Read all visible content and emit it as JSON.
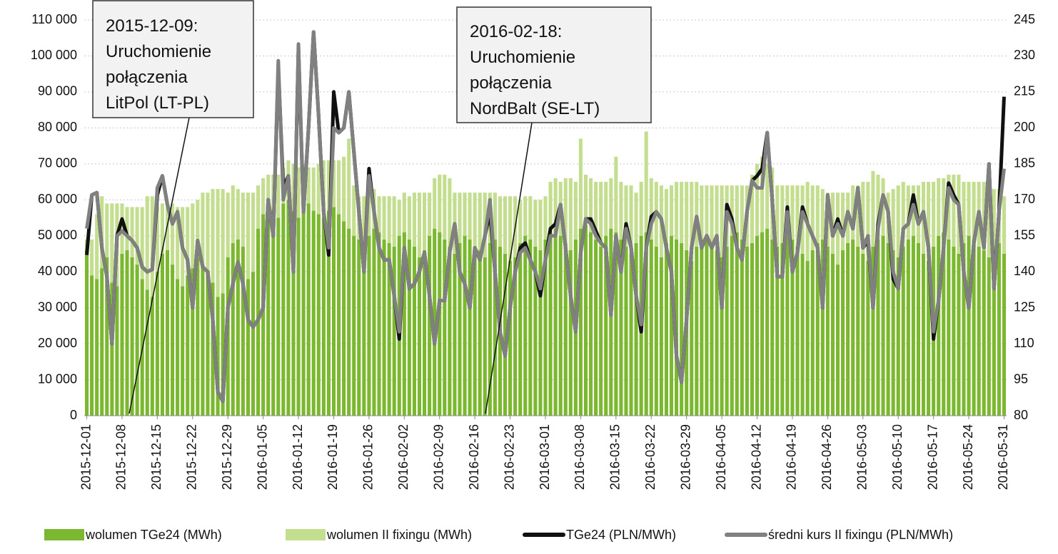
{
  "chart_data": {
    "type": "bar",
    "stacked": true,
    "categories": [
      "2015-12-01",
      null,
      null,
      null,
      null,
      null,
      null,
      "2015-12-08",
      null,
      null,
      null,
      null,
      null,
      null,
      "2015-12-15",
      null,
      null,
      null,
      null,
      null,
      null,
      "2015-12-22",
      null,
      null,
      null,
      null,
      null,
      null,
      "2015-12-29",
      null,
      null,
      null,
      null,
      null,
      null,
      "2016-01-05",
      null,
      null,
      null,
      null,
      null,
      null,
      "2016-01-12",
      null,
      null,
      null,
      null,
      null,
      null,
      "2016-01-19",
      null,
      null,
      null,
      null,
      null,
      null,
      "2016-01-26",
      null,
      null,
      null,
      null,
      null,
      null,
      "2016-02-02",
      null,
      null,
      null,
      null,
      null,
      null,
      "2016-02-09",
      null,
      null,
      null,
      null,
      null,
      null,
      "2016-02-16",
      null,
      null,
      null,
      null,
      null,
      null,
      "2016-02-23",
      null,
      null,
      null,
      null,
      null,
      null,
      "2016-03-01",
      null,
      null,
      null,
      null,
      null,
      null,
      "2016-03-08",
      null,
      null,
      null,
      null,
      null,
      null,
      "2016-03-15",
      null,
      null,
      null,
      null,
      null,
      null,
      "2016-03-22",
      null,
      null,
      null,
      null,
      null,
      null,
      "2016-03-29",
      null,
      null,
      null,
      null,
      null,
      null,
      "2016-04-05",
      null,
      null,
      null,
      null,
      null,
      null,
      "2016-04-12",
      null,
      null,
      null,
      null,
      null,
      null,
      "2016-04-19",
      null,
      null,
      null,
      null,
      null,
      null,
      "2016-04-26",
      null,
      null,
      null,
      null,
      null,
      null,
      "2016-05-03",
      null,
      null,
      null,
      null,
      null,
      null,
      "2016-05-10",
      null,
      null,
      null,
      null,
      null,
      null,
      "2016-05-17",
      null,
      null,
      null,
      null,
      null,
      null,
      "2016-05-24",
      null,
      null,
      null,
      null,
      null,
      null,
      "2016-05-31"
    ],
    "ylim": [
      0,
      110000
    ],
    "yticks": [
      0,
      {
        "value": 10000,
        "label": "10 000"
      },
      {
        "value": 20000,
        "label": "20 000"
      },
      {
        "value": 30000,
        "label": "30 000"
      },
      {
        "value": 40000,
        "label": "40 000"
      },
      {
        "value": 50000,
        "label": "50 000"
      },
      {
        "value": 60000,
        "label": "60 000"
      },
      {
        "value": 70000,
        "label": "70 000"
      },
      {
        "value": 80000,
        "label": "80 000"
      },
      {
        "value": 90000,
        "label": "90 000"
      },
      {
        "value": 100000,
        "label": "100 000"
      },
      {
        "value": 110000,
        "label": "110 000"
      }
    ],
    "y2lim": [
      80,
      245
    ],
    "y2ticks": [
      80,
      95,
      110,
      125,
      140,
      155,
      170,
      185,
      200,
      215,
      230,
      245
    ],
    "grid": true,
    "legend": "bottom",
    "series": [
      {
        "name": "wolumen TGe24 (MWh)",
        "type": "bar",
        "color": "#7cb82f",
        "values": [
          46000,
          39000,
          38000,
          41000,
          44000,
          37000,
          36000,
          45000,
          46000,
          44000,
          42000,
          38000,
          35000,
          33000,
          40000,
          45000,
          46000,
          42000,
          38000,
          36000,
          39000,
          41000,
          44000,
          42000,
          40000,
          37000,
          33000,
          34000,
          44000,
          48000,
          49000,
          47000,
          38000,
          40000,
          52000,
          56000,
          58000,
          57000,
          55000,
          59000,
          60000,
          57000,
          55000,
          58000,
          59000,
          57000,
          56000,
          55000,
          57000,
          58000,
          56000,
          54000,
          52000,
          50000,
          49000,
          48000,
          50000,
          52000,
          51000,
          49000,
          48000,
          47000,
          50000,
          51000,
          49000,
          47000,
          44000,
          46000,
          50000,
          52000,
          51000,
          49000,
          47000,
          45000,
          48000,
          50000,
          49000,
          47000,
          46000,
          44000,
          48000,
          49000,
          47000,
          45000,
          43000,
          44000,
          48000,
          50000,
          49000,
          47000,
          46000,
          49000,
          51000,
          52000,
          50000,
          48000,
          46000,
          49000,
          52000,
          53000,
          51000,
          49000,
          47000,
          50000,
          52000,
          51000,
          49000,
          47000,
          45000,
          48000,
          50000,
          51000,
          49000,
          47000,
          44000,
          48000,
          50000,
          49000,
          48000,
          46000,
          43000,
          47000,
          49000,
          50000,
          48000,
          46000,
          44000,
          47000,
          50000,
          51000,
          49000,
          47000,
          48000,
          50000,
          51000,
          52000,
          49000,
          47000,
          48000,
          50000,
          49000,
          47000,
          45000,
          43000,
          46000,
          48000,
          49000,
          47000,
          45000,
          42000,
          46000,
          48000,
          49000,
          47000,
          45000,
          43000,
          47000,
          49000,
          50000,
          48000,
          46000,
          44000,
          47000,
          49000,
          50000,
          48000,
          45000,
          43000,
          47000,
          50000,
          51000,
          49000,
          47000,
          45000,
          48000,
          50000,
          49000,
          47000,
          46000,
          44000,
          47000,
          48000,
          45000
        ]
      },
      {
        "name": "wolumen II fixingu (MWh)",
        "type": "bar",
        "color": "#c4de90",
        "values": [
          3000,
          10000,
          18000,
          20000,
          15000,
          22000,
          23000,
          14000,
          12000,
          14000,
          16000,
          20000,
          26000,
          28000,
          18000,
          14000,
          12000,
          17000,
          20000,
          22000,
          19000,
          18000,
          16000,
          20000,
          22000,
          26000,
          30000,
          29000,
          18000,
          16000,
          14000,
          15000,
          24000,
          22000,
          12000,
          10000,
          9000,
          10000,
          12000,
          10000,
          11000,
          13000,
          14000,
          12000,
          10000,
          12000,
          14000,
          16000,
          14000,
          13000,
          15000,
          18000,
          25000,
          14000,
          12000,
          13000,
          12000,
          11000,
          10000,
          12000,
          13000,
          14000,
          10000,
          11000,
          12000,
          15000,
          18000,
          16000,
          12000,
          14000,
          16000,
          18000,
          19000,
          17000,
          14000,
          12000,
          13000,
          15000,
          16000,
          18000,
          14000,
          13000,
          14000,
          16000,
          18000,
          17000,
          12000,
          11000,
          12000,
          13000,
          14000,
          12000,
          14000,
          14000,
          15000,
          18000,
          20000,
          16000,
          25000,
          14000,
          15000,
          16000,
          18000,
          15000,
          14000,
          21000,
          16000,
          17000,
          19000,
          14000,
          15000,
          28000,
          17000,
          18000,
          20000,
          15000,
          14000,
          16000,
          17000,
          19000,
          22000,
          18000,
          15000,
          14000,
          16000,
          18000,
          20000,
          17000,
          14000,
          13000,
          15000,
          17000,
          19000,
          20000,
          21000,
          18000,
          20000,
          17000,
          16000,
          14000,
          15000,
          17000,
          19000,
          22000,
          18000,
          16000,
          14000,
          15000,
          17000,
          20000,
          16000,
          14000,
          15000,
          17000,
          20000,
          22000,
          21000,
          18000,
          16000,
          14000,
          17000,
          20000,
          18000,
          15000,
          14000,
          16000,
          20000,
          22000,
          18000,
          16000,
          15000,
          18000,
          20000,
          22000,
          17000,
          15000,
          16000,
          18000,
          19000,
          20000,
          16000,
          15000,
          16000
        ]
      },
      {
        "name": "TGe24 (PLN/MWh)",
        "type": "line",
        "axis": "y2",
        "color": "#111111",
        "values": [
          147,
          172,
          173,
          150,
          138,
          110,
          155,
          162,
          155,
          153,
          150,
          142,
          140,
          141,
          172,
          180,
          168,
          160,
          165,
          150,
          145,
          125,
          153,
          142,
          140,
          120,
          90,
          86,
          125,
          135,
          144,
          135,
          120,
          117,
          120,
          125,
          170,
          155,
          225,
          175,
          180,
          140,
          233,
          165,
          200,
          240,
          205,
          165,
          147,
          215,
          198,
          200,
          215,
          190,
          165,
          140,
          183,
          165,
          150,
          145,
          145,
          130,
          112,
          150,
          133,
          135,
          140,
          148,
          130,
          110,
          128,
          128,
          148,
          160,
          140,
          135,
          125,
          150,
          145,
          155,
          165,
          140,
          115,
          105,
          125,
          140,
          150,
          152,
          145,
          140,
          130,
          145,
          158,
          160,
          168,
          150,
          130,
          115,
          148,
          162,
          162,
          157,
          152,
          150,
          122,
          155,
          140,
          160,
          150,
          130,
          115,
          150,
          163,
          165,
          162,
          150,
          140,
          105,
          94,
          120,
          150,
          163,
          150,
          155,
          150,
          155,
          125,
          168,
          162,
          150,
          145,
          165,
          178,
          180,
          183,
          198,
          170,
          138,
          138,
          167,
          140,
          148,
          167,
          160,
          155,
          150,
          125,
          172,
          155,
          162,
          155,
          165,
          158,
          175,
          150,
          153,
          125,
          160,
          172,
          165,
          137,
          133,
          158,
          160,
          172,
          160,
          165,
          150,
          112,
          128,
          150,
          177,
          172,
          168,
          140,
          125,
          152,
          165,
          150,
          185,
          133,
          165,
          213
        ]
      },
      {
        "name": "średni kurs II fixingu (PLN/MWh)",
        "type": "line",
        "axis": "y2",
        "color": "#808080",
        "values": [
          158,
          172,
          173,
          150,
          138,
          110,
          155,
          157,
          155,
          153,
          150,
          142,
          140,
          141,
          175,
          180,
          168,
          160,
          165,
          150,
          145,
          125,
          153,
          142,
          140,
          120,
          90,
          86,
          125,
          135,
          144,
          135,
          120,
          117,
          120,
          125,
          170,
          155,
          228,
          170,
          180,
          140,
          235,
          165,
          200,
          240,
          205,
          165,
          150,
          200,
          198,
          200,
          215,
          190,
          165,
          140,
          180,
          165,
          150,
          145,
          145,
          130,
          115,
          150,
          133,
          135,
          140,
          148,
          130,
          110,
          128,
          128,
          148,
          160,
          140,
          135,
          125,
          150,
          145,
          155,
          170,
          140,
          115,
          105,
          125,
          140,
          148,
          150,
          145,
          140,
          133,
          145,
          155,
          155,
          168,
          150,
          130,
          115,
          148,
          162,
          160,
          155,
          152,
          150,
          122,
          155,
          140,
          158,
          150,
          130,
          118,
          150,
          160,
          165,
          162,
          150,
          140,
          105,
          94,
          120,
          150,
          163,
          150,
          155,
          150,
          155,
          125,
          165,
          160,
          150,
          145,
          165,
          178,
          175,
          175,
          198,
          170,
          138,
          138,
          165,
          140,
          148,
          165,
          160,
          155,
          150,
          125,
          172,
          155,
          160,
          155,
          165,
          158,
          175,
          150,
          155,
          125,
          158,
          172,
          165,
          140,
          133,
          158,
          160,
          168,
          160,
          165,
          150,
          115,
          128,
          150,
          175,
          170,
          168,
          140,
          125,
          152,
          165,
          150,
          185,
          133,
          165,
          183
        ]
      }
    ],
    "annotations": [
      {
        "lines": [
          "2015-12-09:",
          "Uruchomienie",
          "połączenia",
          "LitPol (LT-PL)"
        ]
      },
      {
        "lines": [
          "2016-02-18:",
          "Uruchomienie",
          "połączenia",
          "NordBalt (SE-LT)"
        ]
      }
    ]
  }
}
